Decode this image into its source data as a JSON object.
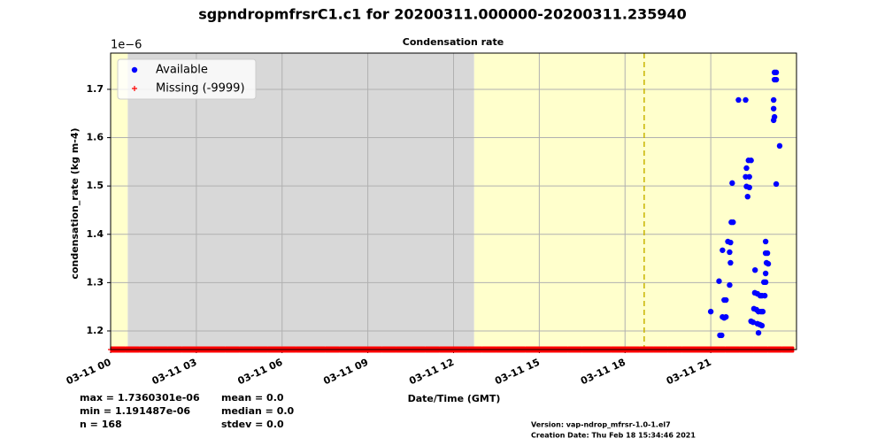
{
  "chart_data": {
    "type": "scatter",
    "title": "sgpndropmfrsrC1.c1 for 20200311.000000-20200311.235940",
    "subtitle": "Condensation rate",
    "x_label": "Date/Time (GMT)",
    "y_label": "condensation_rate (kg m-4)",
    "y_offset_label": "1e−6",
    "xlim": [
      0,
      24
    ],
    "ylim": [
      1.1615,
      1.775
    ],
    "xticks": [
      {
        "value": 0,
        "label": "03-11 00"
      },
      {
        "value": 3,
        "label": "03-11 03"
      },
      {
        "value": 6,
        "label": "03-11 06"
      },
      {
        "value": 9,
        "label": "03-11 09"
      },
      {
        "value": 12,
        "label": "03-11 12"
      },
      {
        "value": 15,
        "label": "03-11 15"
      },
      {
        "value": 18,
        "label": "03-11 18"
      },
      {
        "value": 21,
        "label": "03-11 21"
      }
    ],
    "yticks": [
      1.2,
      1.3,
      1.4,
      1.5,
      1.6,
      1.7
    ],
    "grid": true,
    "legend": "upper left",
    "regions": [
      {
        "x": [
          0,
          0.6
        ],
        "color": "#ffffcc"
      },
      {
        "x": [
          0.6,
          12.72
        ],
        "color": "#d8d8d8"
      },
      {
        "x": [
          12.72,
          24
        ],
        "color": "#ffffcc"
      }
    ],
    "vline": {
      "x": 18.67,
      "color": "#c8b400"
    },
    "series": [
      {
        "name": "Available",
        "color": "#0000ff",
        "marker": "dot",
        "x": [
          21.0,
          21.29,
          21.32,
          21.38,
          21.41,
          21.47,
          21.53,
          21.41,
          21.47,
          21.53,
          21.6,
          21.69,
          21.66,
          21.69,
          21.66,
          21.72,
          21.78,
          21.75,
          21.97,
          22.22,
          22.25,
          22.22,
          22.35,
          22.32,
          22.41,
          22.25,
          22.35,
          22.29,
          22.41,
          22.48,
          22.55,
          22.51,
          22.6,
          22.54,
          22.63,
          22.63,
          22.72,
          22.79,
          22.67,
          22.76,
          22.82,
          22.67,
          22.73,
          22.79,
          22.89,
          22.92,
          22.98,
          22.92,
          22.95,
          23.01,
          22.92,
          22.86,
          22.92,
          23.2,
          23.2,
          23.23,
          23.2,
          23.23,
          23.29,
          23.23,
          23.29,
          23.29,
          23.41
        ],
        "values": [
          1.24,
          1.303,
          1.191,
          1.191,
          1.229,
          1.227,
          1.229,
          1.367,
          1.264,
          1.264,
          1.385,
          1.383,
          1.363,
          1.341,
          1.295,
          1.425,
          1.425,
          1.506,
          1.678,
          1.678,
          1.537,
          1.519,
          1.519,
          1.553,
          1.553,
          1.499,
          1.497,
          1.478,
          1.22,
          1.218,
          1.326,
          1.246,
          1.244,
          1.279,
          1.277,
          1.215,
          1.213,
          1.211,
          1.24,
          1.24,
          1.24,
          1.196,
          1.273,
          1.273,
          1.273,
          1.361,
          1.361,
          1.385,
          1.341,
          1.339,
          1.319,
          1.301,
          1.301,
          1.678,
          1.66,
          1.643,
          1.636,
          1.735,
          1.735,
          1.72,
          1.72,
          1.504,
          1.583
        ]
      },
      {
        "name": "Missing (-9999)",
        "color": "#ff0000",
        "marker": "plus",
        "x": [
          0,
          0.5,
          1,
          1.5,
          2,
          2.5,
          3,
          3.5,
          4,
          4.5,
          5,
          5.5,
          6,
          6.5,
          7,
          7.5,
          8,
          8.5,
          9,
          9.5,
          10,
          10.5,
          11,
          11.5,
          12,
          12.5,
          13,
          13.5,
          14,
          14.5,
          15,
          15.5,
          16,
          16.5,
          17,
          17.5,
          18,
          18.5,
          19,
          19.5,
          20,
          20.5,
          21,
          21.5,
          22,
          22.5,
          23,
          23.5,
          23.9
        ],
        "values": [
          1.1615,
          1.1615,
          1.1615,
          1.1615,
          1.1615,
          1.1615,
          1.1615,
          1.1615,
          1.1615,
          1.1615,
          1.1615,
          1.1615,
          1.1615,
          1.1615,
          1.1615,
          1.1615,
          1.1615,
          1.1615,
          1.1615,
          1.1615,
          1.1615,
          1.1615,
          1.1615,
          1.1615,
          1.1615,
          1.1615,
          1.1615,
          1.1615,
          1.1615,
          1.1615,
          1.1615,
          1.1615,
          1.1615,
          1.1615,
          1.1615,
          1.1615,
          1.1615,
          1.1615,
          1.1615,
          1.1615,
          1.1615,
          1.1615,
          1.1615,
          1.1615,
          1.1615,
          1.1615,
          1.1615,
          1.1615,
          1.1615
        ]
      }
    ],
    "stats_left": [
      "max = 1.7360301e-06",
      "min = 1.191487e-06",
      "n = 168"
    ],
    "stats_right": [
      "mean = 0.0",
      "median = 0.0",
      "stdev = 0.0"
    ],
    "footer": [
      "Version: vap-ndrop_mfrsr-1.0-1.el7",
      "Creation Date: Thu Feb 18 15:34:46 2021"
    ]
  }
}
